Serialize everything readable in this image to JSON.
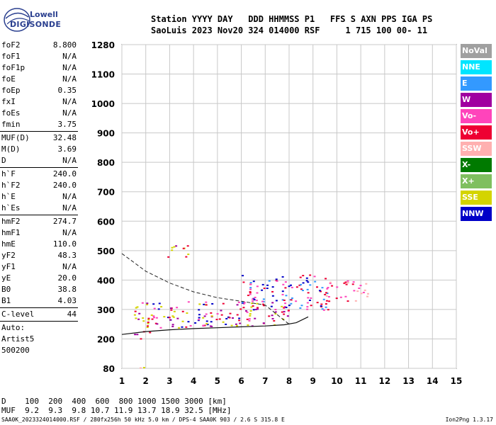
{
  "logo": {
    "line1": "Lowell",
    "line2": "DIGISONDE"
  },
  "header": {
    "line1": "Station YYYY DAY   DDD HHMMSS P1   FFS S AXN PPS IGA PS",
    "line2": "SaoLuis 2023 Nov20 324 014000 RSF     1 715 100 00- 11"
  },
  "params": [
    [
      {
        "label": "foF2",
        "value": "8.800"
      },
      {
        "label": "foF1",
        "value": "N/A"
      },
      {
        "label": "foF1p",
        "value": "N/A"
      },
      {
        "label": "foE",
        "value": "N/A"
      },
      {
        "label": "foEp",
        "value": "0.35"
      },
      {
        "label": "fxI",
        "value": "N/A"
      },
      {
        "label": "foEs",
        "value": "N/A"
      },
      {
        "label": "fmin",
        "value": "3.75"
      }
    ],
    [
      {
        "label": "MUF(D)",
        "value": "32.48"
      },
      {
        "label": "M(D)",
        "value": "3.69"
      },
      {
        "label": "D",
        "value": "N/A"
      }
    ],
    [
      {
        "label": "h`F",
        "value": "240.0"
      },
      {
        "label": "h`F2",
        "value": "240.0"
      },
      {
        "label": "h`E",
        "value": "N/A"
      },
      {
        "label": "h`Es",
        "value": "N/A"
      }
    ],
    [
      {
        "label": "hmF2",
        "value": "274.7"
      },
      {
        "label": "hmF1",
        "value": "N/A"
      },
      {
        "label": "hmE",
        "value": "110.0"
      },
      {
        "label": "yF2",
        "value": "48.3"
      },
      {
        "label": "yF1",
        "value": "N/A"
      },
      {
        "label": "yE",
        "value": "20.0"
      },
      {
        "label": "B0",
        "value": "38.8"
      },
      {
        "label": "B1",
        "value": "4.03"
      }
    ],
    [
      {
        "label": "C-level",
        "value": "44"
      }
    ]
  ],
  "autoscaling": {
    "line1": "Auto:",
    "line2": "Artist5",
    "line3": "500200"
  },
  "legend": [
    {
      "label": "NoVal",
      "color": "#a0a0a0"
    },
    {
      "label": "NNE",
      "color": "#00e5ff"
    },
    {
      "label": "E",
      "color": "#3399ff"
    },
    {
      "label": "W",
      "color": "#a000a0"
    },
    {
      "label": "Vo-",
      "color": "#ff44bb"
    },
    {
      "label": "Vo+",
      "color": "#ee0033"
    },
    {
      "label": "SSW",
      "color": "#ffb0b0"
    },
    {
      "label": "X-",
      "color": "#007a00"
    },
    {
      "label": "X+",
      "color": "#7fbf5f"
    },
    {
      "label": "SSE",
      "color": "#d4d400"
    },
    {
      "label": "NNW",
      "color": "#0000c8"
    }
  ],
  "muf_table": {
    "line1": "D    100  200  400  600  800 1000 1500 3000 [km]",
    "line2": "MUF  9.2  9.3  9.8 10.7 11.9 13.7 18.9 32.5 [MHz]"
  },
  "footer": {
    "left": "SAA0K_2023324014000.RSF / 280fx256h 50 kHz 5.0 km / DPS-4 SAA0K 903 / 2.6 S 315.8 E",
    "right": "Ion2Png 1.3.17"
  },
  "chart_data": {
    "type": "scatter",
    "title": "",
    "xlabel": "",
    "ylabel": "",
    "x_unit": "MHz",
    "y_unit": "km",
    "xlim": [
      1,
      15
    ],
    "ylim": [
      80,
      1280
    ],
    "xticks": [
      1,
      2,
      3,
      4,
      5,
      6,
      7,
      8,
      9,
      10,
      11,
      12,
      13,
      14,
      15
    ],
    "yticks": [
      80,
      200,
      300,
      400,
      500,
      600,
      700,
      800,
      900,
      1000,
      1100,
      1280
    ],
    "grid": true,
    "legend_position": "right",
    "trace_clusters": [
      {
        "name": "F-layer trace main",
        "x_range": [
          1.5,
          8.0
        ],
        "y_range": [
          240,
          330
        ],
        "colors": [
          "#ee0033",
          "#a000a0",
          "#d4d400",
          "#0000c8",
          "#ff44bb"
        ]
      },
      {
        "name": "F-layer trace high",
        "x_range": [
          6.0,
          9.6
        ],
        "y_range": [
          300,
          420
        ],
        "colors": [
          "#ee0033",
          "#ff44bb",
          "#0000c8",
          "#3399ff"
        ]
      },
      {
        "name": "F-layer extension",
        "x_range": [
          9.5,
          11.3
        ],
        "y_range": [
          330,
          400
        ],
        "colors": [
          "#ff44bb",
          "#ee0033",
          "#ffb0b0"
        ]
      },
      {
        "name": "multihop trace",
        "x_range": [
          2.8,
          3.8
        ],
        "y_range": [
          480,
          520
        ],
        "colors": [
          "#ee0033",
          "#a000a0",
          "#d4d400"
        ]
      },
      {
        "name": "low echoes",
        "x_range": [
          1.5,
          2.2
        ],
        "y_range": [
          200,
          230
        ],
        "colors": [
          "#ee0033",
          "#a000a0"
        ]
      },
      {
        "name": "bottom echoes",
        "x_range": [
          1.7,
          2.1
        ],
        "y_range": [
          83,
          100
        ],
        "colors": [
          "#0000c8",
          "#d4d400",
          "#ffb0b0"
        ]
      }
    ],
    "profile_curve": [
      {
        "x": 1.0,
        "y": 215
      },
      {
        "x": 2.0,
        "y": 225
      },
      {
        "x": 3.0,
        "y": 231
      },
      {
        "x": 4.0,
        "y": 235
      },
      {
        "x": 5.0,
        "y": 238
      },
      {
        "x": 6.0,
        "y": 241
      },
      {
        "x": 7.0,
        "y": 244
      },
      {
        "x": 7.8,
        "y": 248
      },
      {
        "x": 8.3,
        "y": 255
      },
      {
        "x": 8.8,
        "y": 275
      }
    ],
    "dashed_curve": [
      {
        "x": 1.0,
        "y": 490
      },
      {
        "x": 1.5,
        "y": 460
      },
      {
        "x": 2.0,
        "y": 430
      },
      {
        "x": 3.0,
        "y": 390
      },
      {
        "x": 4.0,
        "y": 360
      },
      {
        "x": 5.0,
        "y": 340
      },
      {
        "x": 6.0,
        "y": 328
      },
      {
        "x": 7.0,
        "y": 315
      },
      {
        "x": 8.0,
        "y": 250
      }
    ]
  }
}
